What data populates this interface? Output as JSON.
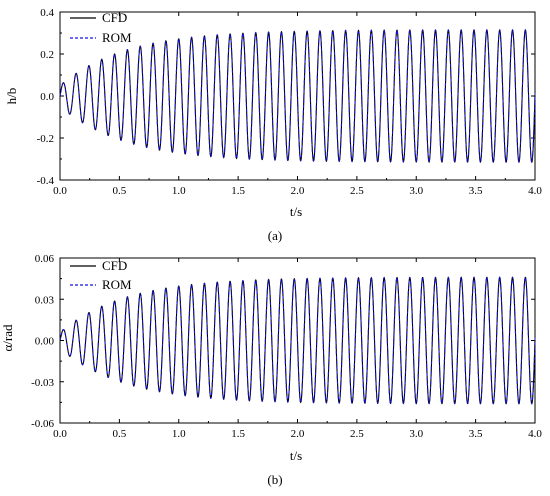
{
  "colors": {
    "cfd": "#000000",
    "rom": "#1010dd",
    "axis": "#000000",
    "background": "#ffffff"
  },
  "chart_data": [
    {
      "type": "line",
      "panel_label": "(a)",
      "xlabel": "t/s",
      "ylabel": "h/b",
      "xlim": [
        0.0,
        4.0
      ],
      "ylim": [
        -0.4,
        0.4
      ],
      "x_ticks": [
        "0.0",
        "0.5",
        "1.0",
        "1.5",
        "2.0",
        "2.5",
        "3.0",
        "3.5",
        "4.0"
      ],
      "y_ticks": [
        "-0.4",
        "-0.2",
        "0.0",
        "0.2",
        "0.4"
      ],
      "grid": false,
      "legend": {
        "placement": "top-left",
        "entries": [
          "CFD",
          "ROM"
        ]
      },
      "signal": {
        "description_of_form": "growing sinusoidal oscillation saturating to a limit cycle",
        "frequency_hz": 9.25,
        "initial_amplitude": 0.05,
        "saturated_amplitude": 0.315,
        "growth_time_constant_s": 0.55,
        "x_start": 0.0,
        "x_end": 4.0
      },
      "series": [
        {
          "name": "CFD",
          "style": "solid",
          "values_at_peaks": [
            0.05,
            0.07,
            0.09,
            0.11,
            0.14,
            0.17,
            0.2,
            0.23,
            0.26,
            0.28,
            0.3,
            0.31,
            0.315,
            0.315
          ]
        },
        {
          "name": "ROM",
          "style": "dashed",
          "values_at_peaks": [
            0.05,
            0.07,
            0.09,
            0.11,
            0.14,
            0.17,
            0.2,
            0.23,
            0.26,
            0.28,
            0.3,
            0.31,
            0.315,
            0.315
          ]
        }
      ]
    },
    {
      "type": "line",
      "panel_label": "(b)",
      "xlabel": "t/s",
      "ylabel": "α/rad",
      "xlim": [
        0.0,
        4.0
      ],
      "ylim": [
        -0.06,
        0.06
      ],
      "x_ticks": [
        "0.0",
        "0.5",
        "1.0",
        "1.5",
        "2.0",
        "2.5",
        "3.0",
        "3.5",
        "4.0"
      ],
      "y_ticks": [
        "-0.06",
        "-0.03",
        "0.00",
        "0.03",
        "0.06"
      ],
      "grid": false,
      "legend": {
        "placement": "top-left",
        "entries": [
          "CFD",
          "ROM"
        ]
      },
      "signal": {
        "description_of_form": "growing sinusoidal oscillation saturating to a limit cycle",
        "frequency_hz": 9.25,
        "initial_amplitude": 0.006,
        "saturated_amplitude": 0.046,
        "growth_time_constant_s": 0.55,
        "x_start": 0.0,
        "x_end": 4.0
      },
      "series": [
        {
          "name": "CFD",
          "style": "solid",
          "values_at_peaks": [
            0.01,
            0.013,
            0.016,
            0.02,
            0.024,
            0.028,
            0.032,
            0.036,
            0.04,
            0.043,
            0.045,
            0.046,
            0.046
          ]
        },
        {
          "name": "ROM",
          "style": "dashed",
          "values_at_peaks": [
            0.01,
            0.013,
            0.016,
            0.02,
            0.024,
            0.028,
            0.032,
            0.036,
            0.04,
            0.043,
            0.045,
            0.046,
            0.046
          ]
        }
      ]
    }
  ]
}
